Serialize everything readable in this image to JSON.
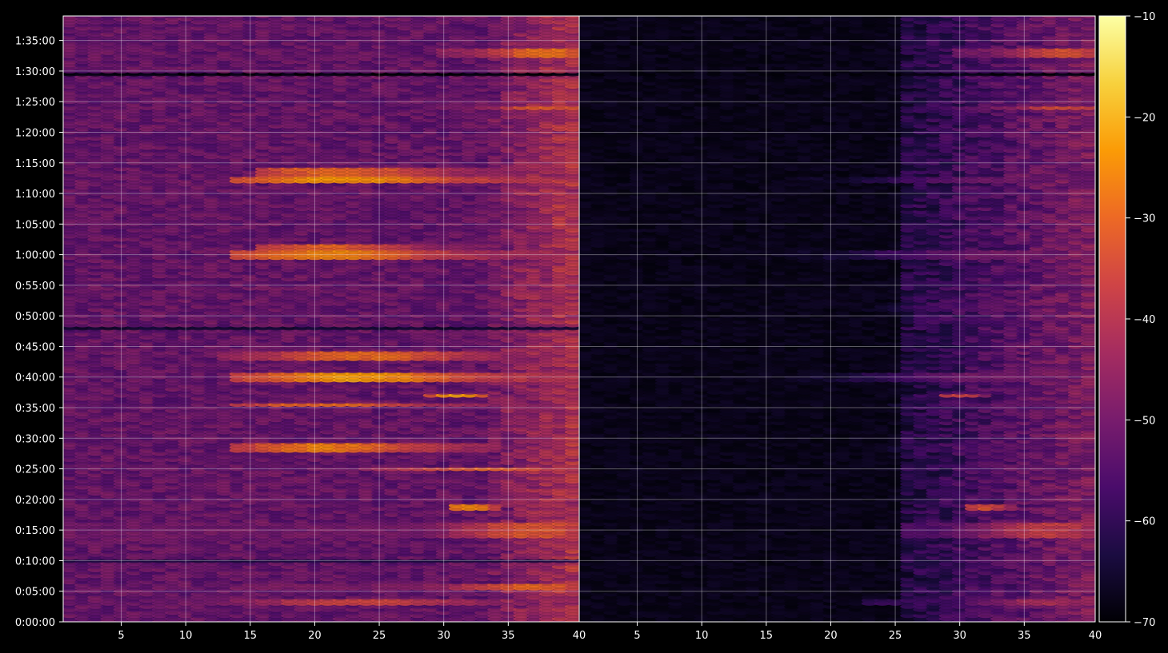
{
  "chart_data": {
    "type": "heatmap",
    "background_color": "#000000",
    "grid": true,
    "grid_color": "#ffffff",
    "colormap": "inferno",
    "colormap_stops": [
      "#000004",
      "#1b0c41",
      "#4a0c6b",
      "#781c6d",
      "#a52c60",
      "#cf4446",
      "#ed6925",
      "#fb9b06",
      "#f7d13d",
      "#fcffa4"
    ],
    "panels": [
      {
        "name": "left",
        "x_range": [
          1,
          40
        ],
        "x_ticks": [
          5,
          10,
          15,
          20,
          25,
          30,
          35
        ],
        "x_tick_labels": [
          "5",
          "10",
          "15",
          "20",
          "25",
          "30",
          "35"
        ],
        "y_range_seconds": [
          0,
          5940
        ],
        "y_ticks_seconds": [
          0,
          300,
          600,
          900,
          1200,
          1500,
          1800,
          2100,
          2400,
          2700,
          3000,
          3300,
          3600,
          3900,
          4200,
          4500,
          4800,
          5100,
          5400,
          5700
        ],
        "y_tick_labels": [
          "0:00:00",
          "0:05:00",
          "0:10:00",
          "0:15:00",
          "0:20:00",
          "0:25:00",
          "0:30:00",
          "0:35:00",
          "0:40:00",
          "0:45:00",
          "0:50:00",
          "0:55:00",
          "1:00:00",
          "1:05:00",
          "1:10:00",
          "1:15:00",
          "1:20:00",
          "1:25:00",
          "1:30:00",
          "1:35:00"
        ],
        "level_base_db": -52,
        "level_low_freq_db": -47,
        "level_high_freq_db": -42,
        "gap_rows": [
          {
            "time_s": 5370,
            "db": -70
          },
          {
            "time_s": 2880,
            "db": -66
          },
          {
            "time_s": 600,
            "db": -64
          }
        ],
        "bands": [
          {
            "time_s": 4325,
            "x_from": 14,
            "x_to": 40,
            "peak_x": 22,
            "width_x": 9,
            "db": -24,
            "thickness_s": 30
          },
          {
            "time_s": 4410,
            "x_from": 16,
            "x_to": 40,
            "peak_x": 22,
            "width_x": 8,
            "db": -30,
            "thickness_s": 30
          },
          {
            "time_s": 3590,
            "x_from": 14,
            "x_to": 40,
            "peak_x": 21,
            "width_x": 8,
            "db": -26,
            "thickness_s": 40
          },
          {
            "time_s": 3670,
            "x_from": 16,
            "x_to": 34,
            "peak_x": 21,
            "width_x": 7,
            "db": -31,
            "thickness_s": 30
          },
          {
            "time_s": 2410,
            "x_from": 14,
            "x_to": 40,
            "peak_x": 23,
            "width_x": 8,
            "db": -23,
            "thickness_s": 40
          },
          {
            "time_s": 2610,
            "x_from": 13,
            "x_to": 40,
            "peak_x": 24,
            "width_x": 8,
            "db": -30,
            "thickness_s": 40
          },
          {
            "time_s": 2130,
            "x_from": 14,
            "x_to": 40,
            "peak_x": 21,
            "width_x": 8,
            "db": -29,
            "thickness_s": 25
          },
          {
            "time_s": 1710,
            "x_from": 14,
            "x_to": 34,
            "peak_x": 21,
            "width_x": 7,
            "db": -27,
            "thickness_s": 40
          },
          {
            "time_s": 1500,
            "x_from": 24,
            "x_to": 40,
            "peak_x": 33,
            "width_x": 8,
            "db": -31,
            "thickness_s": 25
          },
          {
            "time_s": 900,
            "x_from": 1,
            "x_to": 40,
            "peak_x": 37,
            "width_x": 6,
            "db": -33,
            "thickness_s": 60
          },
          {
            "time_s": 1120,
            "x_from": 31,
            "x_to": 34,
            "peak_x": 32,
            "width_x": 2,
            "db": -24,
            "thickness_s": 20
          },
          {
            "time_s": 2220,
            "x_from": 29,
            "x_to": 33,
            "peak_x": 31,
            "width_x": 2,
            "db": -22,
            "thickness_s": 20
          },
          {
            "time_s": 190,
            "x_from": 1,
            "x_to": 40,
            "peak_x": 24,
            "width_x": 10,
            "db": -36,
            "thickness_s": 30
          },
          {
            "time_s": 345,
            "x_from": 14,
            "x_to": 40,
            "peak_x": 37,
            "width_x": 6,
            "db": -31,
            "thickness_s": 25
          },
          {
            "time_s": 5580,
            "x_from": 30,
            "x_to": 40,
            "peak_x": 38,
            "width_x": 4,
            "db": -28,
            "thickness_s": 40
          },
          {
            "time_s": 5040,
            "x_from": 30,
            "x_to": 40,
            "peak_x": 38,
            "width_x": 4,
            "db": -31,
            "thickness_s": 20
          }
        ]
      },
      {
        "name": "right",
        "x_range": [
          1,
          40
        ],
        "x_ticks": [
          5,
          10,
          15,
          20,
          25,
          30,
          35
        ],
        "x_tick_labels": [
          "5",
          "10",
          "15",
          "20",
          "25",
          "30",
          "35"
        ],
        "x_edge_labels": [
          "40",
          "40"
        ],
        "y_range_seconds": [
          0,
          5940
        ],
        "level_base_db": -69,
        "level_high_freq_db": -44,
        "high_freq_start_x": 26,
        "gap_rows": [
          {
            "time_s": 5370,
            "db": -70
          }
        ],
        "bands": [
          {
            "time_s": 4325,
            "x_from": 14,
            "x_to": 40,
            "peak_x": 33,
            "width_x": 10,
            "db": -51,
            "thickness_s": 30
          },
          {
            "time_s": 3590,
            "x_from": 13,
            "x_to": 40,
            "peak_x": 33,
            "width_x": 10,
            "db": -50,
            "thickness_s": 40
          },
          {
            "time_s": 3090,
            "x_from": 15,
            "x_to": 40,
            "peak_x": 33,
            "width_x": 8,
            "db": -53,
            "thickness_s": 30
          },
          {
            "time_s": 2410,
            "x_from": 14,
            "x_to": 40,
            "peak_x": 33,
            "width_x": 10,
            "db": -50,
            "thickness_s": 40
          },
          {
            "time_s": 2130,
            "x_from": 14,
            "x_to": 40,
            "peak_x": 34,
            "width_x": 8,
            "db": -52,
            "thickness_s": 25
          },
          {
            "time_s": 1710,
            "x_from": 14,
            "x_to": 40,
            "peak_x": 33,
            "width_x": 8,
            "db": -54,
            "thickness_s": 40
          },
          {
            "time_s": 1120,
            "x_from": 31,
            "x_to": 34,
            "peak_x": 32,
            "width_x": 2,
            "db": -34,
            "thickness_s": 20
          },
          {
            "time_s": 2220,
            "x_from": 29,
            "x_to": 32,
            "peak_x": 30,
            "width_x": 2,
            "db": -36,
            "thickness_s": 20
          },
          {
            "time_s": 900,
            "x_from": 26,
            "x_to": 40,
            "peak_x": 37,
            "width_x": 6,
            "db": -38,
            "thickness_s": 60
          },
          {
            "time_s": 190,
            "x_from": 23,
            "x_to": 40,
            "peak_x": 37,
            "width_x": 6,
            "db": -42,
            "thickness_s": 30
          },
          {
            "time_s": 5580,
            "x_from": 30,
            "x_to": 40,
            "peak_x": 38,
            "width_x": 4,
            "db": -33,
            "thickness_s": 40
          },
          {
            "time_s": 5040,
            "x_from": 30,
            "x_to": 40,
            "peak_x": 38,
            "width_x": 4,
            "db": -34,
            "thickness_s": 20
          }
        ]
      }
    ],
    "colorbar": {
      "range": [
        -70,
        -10
      ],
      "ticks": [
        -70,
        -60,
        -50,
        -40,
        -30,
        -20,
        -10
      ],
      "tick_labels": [
        "−70",
        "−60",
        "−50",
        "−40",
        "−30",
        "−20",
        "−10"
      ]
    }
  }
}
